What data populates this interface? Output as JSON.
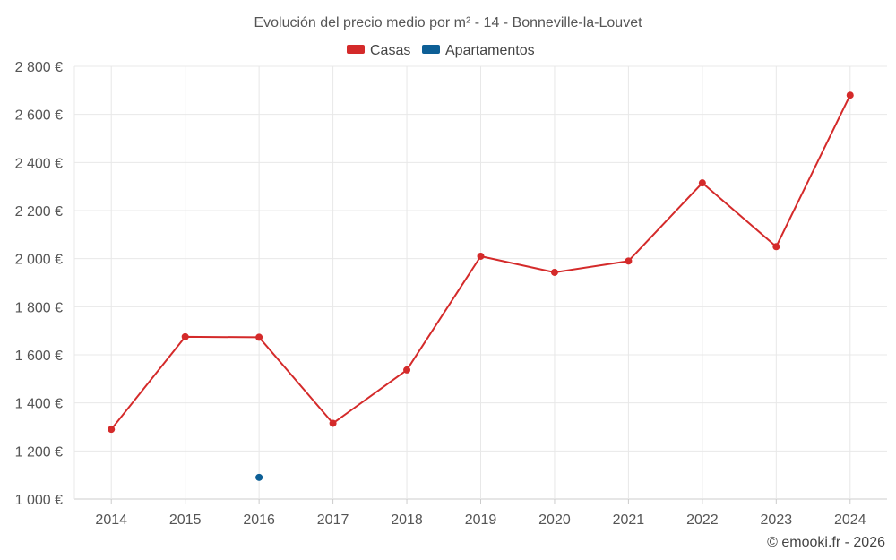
{
  "chart_data": {
    "type": "line",
    "title": "Evolución del precio medio por m² - 14 - Bonneville-la-Louvet",
    "xlabel": "",
    "ylabel": "",
    "categories": [
      "2014",
      "2015",
      "2016",
      "2017",
      "2018",
      "2019",
      "2020",
      "2021",
      "2022",
      "2023",
      "2024"
    ],
    "y_ticks": [
      "1 000 €",
      "1 200 €",
      "1 400 €",
      "1 600 €",
      "1 800 €",
      "2 000 €",
      "2 200 €",
      "2 400 €",
      "2 600 €",
      "2 800 €"
    ],
    "ylim": [
      1000,
      2800
    ],
    "grid": true,
    "legend_position": "top-center",
    "series": [
      {
        "name": "Casas",
        "color": "#d42a2a",
        "values": [
          1290,
          1675,
          1673,
          1315,
          1537,
          2010,
          1943,
          1990,
          2315,
          2050,
          2680
        ]
      },
      {
        "name": "Apartamentos",
        "color": "#0d5f96",
        "values": [
          null,
          null,
          1090,
          null,
          null,
          null,
          null,
          null,
          null,
          null,
          null
        ]
      }
    ]
  },
  "credit": "© emooki.fr - 2026"
}
